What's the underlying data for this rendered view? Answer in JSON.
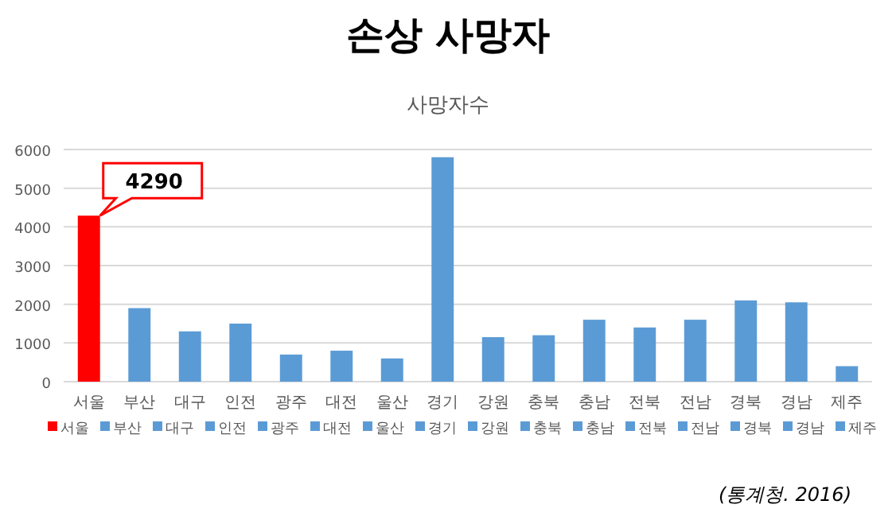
{
  "chart_data": {
    "type": "bar",
    "title": "손상 사망자",
    "subtitle": "사망자수",
    "categories": [
      "서울",
      "부산",
      "대구",
      "인전",
      "광주",
      "대전",
      "울산",
      "경기",
      "강원",
      "충북",
      "충남",
      "전북",
      "전남",
      "경북",
      "경남",
      "제주"
    ],
    "series": [
      {
        "name": "서울",
        "color": "#ff0000",
        "values": [
          4290,
          null,
          null,
          null,
          null,
          null,
          null,
          null,
          null,
          null,
          null,
          null,
          null,
          null,
          null,
          null
        ]
      },
      {
        "name": "부산",
        "color": "#5b9bd5",
        "values": [
          null,
          1900,
          null,
          null,
          null,
          null,
          null,
          null,
          null,
          null,
          null,
          null,
          null,
          null,
          null,
          null
        ]
      },
      {
        "name": "대구",
        "color": "#5b9bd5",
        "values": [
          null,
          null,
          1300,
          null,
          null,
          null,
          null,
          null,
          null,
          null,
          null,
          null,
          null,
          null,
          null,
          null
        ]
      },
      {
        "name": "인전",
        "color": "#5b9bd5",
        "values": [
          null,
          null,
          null,
          1500,
          null,
          null,
          null,
          null,
          null,
          null,
          null,
          null,
          null,
          null,
          null,
          null
        ]
      },
      {
        "name": "광주",
        "color": "#5b9bd5",
        "values": [
          null,
          null,
          null,
          null,
          700,
          null,
          null,
          null,
          null,
          null,
          null,
          null,
          null,
          null,
          null,
          null
        ]
      },
      {
        "name": "대전",
        "color": "#5b9bd5",
        "values": [
          null,
          null,
          null,
          null,
          null,
          800,
          null,
          null,
          null,
          null,
          null,
          null,
          null,
          null,
          null,
          null
        ]
      },
      {
        "name": "울산",
        "color": "#5b9bd5",
        "values": [
          null,
          null,
          null,
          null,
          null,
          null,
          600,
          null,
          null,
          null,
          null,
          null,
          null,
          null,
          null,
          null
        ]
      },
      {
        "name": "경기",
        "color": "#5b9bd5",
        "values": [
          null,
          null,
          null,
          null,
          null,
          null,
          null,
          5800,
          null,
          null,
          null,
          null,
          null,
          null,
          null,
          null
        ]
      },
      {
        "name": "강원",
        "color": "#5b9bd5",
        "values": [
          null,
          null,
          null,
          null,
          null,
          null,
          null,
          null,
          1150,
          null,
          null,
          null,
          null,
          null,
          null,
          null
        ]
      },
      {
        "name": "충북",
        "color": "#5b9bd5",
        "values": [
          null,
          null,
          null,
          null,
          null,
          null,
          null,
          null,
          null,
          1200,
          null,
          null,
          null,
          null,
          null,
          null
        ]
      },
      {
        "name": "충남",
        "color": "#5b9bd5",
        "values": [
          null,
          null,
          null,
          null,
          null,
          null,
          null,
          null,
          null,
          null,
          1600,
          null,
          null,
          null,
          null,
          null
        ]
      },
      {
        "name": "전북",
        "color": "#5b9bd5",
        "values": [
          null,
          null,
          null,
          null,
          null,
          null,
          null,
          null,
          null,
          null,
          null,
          1400,
          null,
          null,
          null,
          null
        ]
      },
      {
        "name": "전남",
        "color": "#5b9bd5",
        "values": [
          null,
          null,
          null,
          null,
          null,
          null,
          null,
          null,
          null,
          null,
          null,
          null,
          1600,
          null,
          null,
          null
        ]
      },
      {
        "name": "경북",
        "color": "#5b9bd5",
        "values": [
          null,
          null,
          null,
          null,
          null,
          null,
          null,
          null,
          null,
          null,
          null,
          null,
          null,
          2100,
          null,
          null
        ]
      },
      {
        "name": "경남",
        "color": "#5b9bd5",
        "values": [
          null,
          null,
          null,
          null,
          null,
          null,
          null,
          null,
          null,
          null,
          null,
          null,
          null,
          null,
          2050,
          null
        ]
      },
      {
        "name": "제주",
        "color": "#5b9bd5",
        "values": [
          null,
          null,
          null,
          null,
          null,
          null,
          null,
          null,
          null,
          null,
          null,
          null,
          null,
          null,
          null,
          400
        ]
      }
    ],
    "ylim": [
      0,
      6000
    ],
    "yticks": [
      0,
      1000,
      2000,
      3000,
      4000,
      5000,
      6000
    ],
    "grid": "y",
    "legend": "bottom",
    "annotations": [
      {
        "text": "4290",
        "x": "서울",
        "y": 4290
      },
      "(통계청. 2016)"
    ]
  }
}
